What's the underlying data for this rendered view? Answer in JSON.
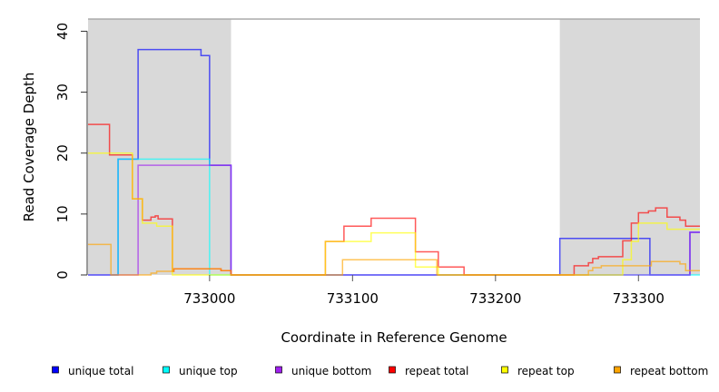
{
  "chart_data": {
    "type": "line",
    "subtype": "step",
    "xlabel": "Coordinate in Reference Genome",
    "ylabel": "Read Coverage Depth",
    "xlim": [
      732915,
      733343
    ],
    "ylim": [
      0,
      42
    ],
    "xticks": [
      733000,
      733100,
      733200,
      733300
    ],
    "yticks": [
      0,
      10,
      20,
      30,
      40
    ],
    "shaded_regions": [
      [
        732915,
        733015
      ],
      [
        733245,
        733343
      ]
    ],
    "legend_position": "bottom",
    "series": [
      {
        "name": "unique total",
        "color": "#0000ff",
        "steps": [
          [
            732915,
            0
          ],
          [
            732936,
            19
          ],
          [
            732950,
            37
          ],
          [
            732994,
            36
          ],
          [
            733000,
            18
          ],
          [
            733015,
            0
          ],
          [
            733245,
            6
          ],
          [
            733308,
            0
          ],
          [
            733336,
            7
          ],
          [
            733343,
            7
          ]
        ]
      },
      {
        "name": "unique top",
        "color": "#00ffff",
        "steps": [
          [
            732915,
            0
          ],
          [
            732936,
            19
          ],
          [
            732994,
            19
          ],
          [
            733000,
            0
          ],
          [
            733343,
            0
          ]
        ]
      },
      {
        "name": "unique bottom",
        "color": "#a020f0",
        "steps": [
          [
            732915,
            0
          ],
          [
            732950,
            18
          ],
          [
            733015,
            0
          ],
          [
            733336,
            7
          ],
          [
            733343,
            7
          ]
        ]
      },
      {
        "name": "repeat total",
        "color": "#ff0000",
        "steps": [
          [
            732915,
            24.7
          ],
          [
            732930,
            19.7
          ],
          [
            732946,
            12.5
          ],
          [
            732953,
            9
          ],
          [
            732959,
            9.5
          ],
          [
            732962,
            9.7
          ],
          [
            732964,
            9.2
          ],
          [
            732974,
            0.6
          ],
          [
            732975,
            1
          ],
          [
            733008,
            0.7
          ],
          [
            733015,
            0
          ],
          [
            733081,
            5.5
          ],
          [
            733094,
            8
          ],
          [
            733113,
            9.3
          ],
          [
            733144,
            3.8
          ],
          [
            733160,
            1.3
          ],
          [
            733178,
            0
          ],
          [
            733255,
            1.5
          ],
          [
            733265,
            2
          ],
          [
            733268,
            2.7
          ],
          [
            733272,
            3
          ],
          [
            733289,
            5.6
          ],
          [
            733295,
            8.5
          ],
          [
            733300,
            10.2
          ],
          [
            733307,
            10.5
          ],
          [
            733312,
            11
          ],
          [
            733320,
            9.5
          ],
          [
            733329,
            9
          ],
          [
            733333,
            8
          ],
          [
            733343,
            8
          ]
        ]
      },
      {
        "name": "repeat top",
        "color": "#ffff00",
        "steps": [
          [
            732915,
            20
          ],
          [
            732946,
            12.5
          ],
          [
            732953,
            8.5
          ],
          [
            732963,
            8
          ],
          [
            732974,
            0
          ],
          [
            733081,
            5.5
          ],
          [
            733113,
            6.9
          ],
          [
            733144,
            1.3
          ],
          [
            733160,
            0
          ],
          [
            733289,
            2.5
          ],
          [
            733295,
            5.5
          ],
          [
            733300,
            8.5
          ],
          [
            733320,
            7.5
          ],
          [
            733343,
            7.5
          ]
        ]
      },
      {
        "name": "repeat bottom",
        "color": "#ffa500",
        "steps": [
          [
            732915,
            5
          ],
          [
            732931,
            0
          ],
          [
            732959,
            0.3
          ],
          [
            732963,
            0.6
          ],
          [
            732975,
            1
          ],
          [
            733008,
            0.7
          ],
          [
            733015,
            0
          ],
          [
            733093,
            2.5
          ],
          [
            733159,
            0
          ],
          [
            733265,
            0.7
          ],
          [
            733268,
            1.2
          ],
          [
            733274,
            1.5
          ],
          [
            733309,
            2.2
          ],
          [
            733329,
            1.8
          ],
          [
            733333,
            0.7
          ],
          [
            733343,
            0.7
          ]
        ]
      }
    ]
  }
}
